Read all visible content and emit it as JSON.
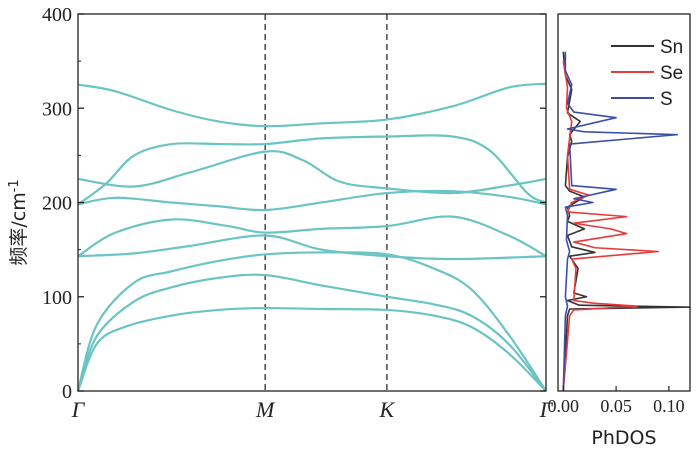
{
  "chart_data": [
    {
      "type": "line",
      "name": "phonon-dispersion",
      "ylabel": "频率/cm-1",
      "ylim": [
        0,
        400
      ],
      "yticks": [
        0,
        100,
        200,
        300,
        400
      ],
      "ytick_labels": [
        "0",
        "100",
        "200",
        "300",
        "400"
      ],
      "x_path": [
        0,
        1,
        1.65,
        2.5
      ],
      "k_points": [
        {
          "label": "Γ",
          "x": 0
        },
        {
          "label": "M",
          "x": 1
        },
        {
          "label": "K",
          "x": 1.65
        },
        {
          "label": "Γ",
          "x": 2.5
        }
      ],
      "dashed_at": [
        1,
        1.65
      ],
      "line_color": "#6bc4c4",
      "branches": [
        [
          [
            0,
            0
          ],
          [
            0.1,
            50
          ],
          [
            0.25,
            68
          ],
          [
            0.5,
            80
          ],
          [
            0.75,
            86
          ],
          [
            1,
            88
          ],
          [
            1.3,
            87
          ],
          [
            1.65,
            86
          ],
          [
            1.9,
            80
          ],
          [
            2.1,
            68
          ],
          [
            2.3,
            40
          ],
          [
            2.5,
            0
          ]
        ],
        [
          [
            0,
            0
          ],
          [
            0.1,
            58
          ],
          [
            0.3,
            95
          ],
          [
            0.5,
            110
          ],
          [
            0.75,
            120
          ],
          [
            1,
            123
          ],
          [
            1.3,
            112
          ],
          [
            1.65,
            100
          ],
          [
            1.9,
            92
          ],
          [
            2.1,
            80
          ],
          [
            2.3,
            50
          ],
          [
            2.5,
            0
          ]
        ],
        [
          [
            0,
            0
          ],
          [
            0.1,
            70
          ],
          [
            0.3,
            115
          ],
          [
            0.5,
            127
          ],
          [
            0.75,
            138
          ],
          [
            1,
            145
          ],
          [
            1.3,
            147
          ],
          [
            1.65,
            145
          ],
          [
            1.9,
            130
          ],
          [
            2.1,
            108
          ],
          [
            2.3,
            60
          ],
          [
            2.5,
            0
          ]
        ],
        [
          [
            0,
            143
          ],
          [
            0.3,
            146
          ],
          [
            0.6,
            154
          ],
          [
            1,
            165
          ],
          [
            1.3,
            150
          ],
          [
            1.65,
            143
          ],
          [
            2,
            140
          ],
          [
            2.5,
            143
          ]
        ],
        [
          [
            0,
            143
          ],
          [
            0.2,
            168
          ],
          [
            0.5,
            182
          ],
          [
            0.8,
            175
          ],
          [
            1,
            168
          ],
          [
            1.3,
            172
          ],
          [
            1.65,
            175
          ],
          [
            2,
            185
          ],
          [
            2.3,
            165
          ],
          [
            2.5,
            143
          ]
        ],
        [
          [
            0,
            198
          ],
          [
            0.2,
            205
          ],
          [
            0.5,
            200
          ],
          [
            0.75,
            196
          ],
          [
            1,
            192
          ],
          [
            1.3,
            200
          ],
          [
            1.65,
            210
          ],
          [
            2,
            212
          ],
          [
            2.3,
            206
          ],
          [
            2.5,
            198
          ]
        ],
        [
          [
            0,
            198
          ],
          [
            0.15,
            220
          ],
          [
            0.3,
            250
          ],
          [
            0.5,
            262
          ],
          [
            0.75,
            262
          ],
          [
            1,
            262
          ],
          [
            1.3,
            268
          ],
          [
            1.65,
            270
          ],
          [
            2,
            270
          ],
          [
            2.2,
            255
          ],
          [
            2.4,
            210
          ],
          [
            2.5,
            200
          ]
        ],
        [
          [
            0,
            225
          ],
          [
            0.3,
            217
          ],
          [
            0.6,
            232
          ],
          [
            1,
            254
          ],
          [
            1.2,
            245
          ],
          [
            1.4,
            222
          ],
          [
            1.65,
            215
          ],
          [
            2,
            210
          ],
          [
            2.3,
            218
          ],
          [
            2.5,
            225
          ]
        ],
        [
          [
            0,
            325
          ],
          [
            0.2,
            318
          ],
          [
            0.5,
            298
          ],
          [
            0.75,
            286
          ],
          [
            1,
            281
          ],
          [
            1.3,
            284
          ],
          [
            1.65,
            288
          ],
          [
            2,
            302
          ],
          [
            2.3,
            322
          ],
          [
            2.5,
            326
          ]
        ]
      ]
    },
    {
      "type": "line",
      "name": "phdos",
      "xlabel": "PhDOS",
      "xlim": [
        -0.005,
        0.12
      ],
      "xticks": [
        0,
        0.05,
        0.1
      ],
      "xtick_labels": [
        "0.00",
        "0.05",
        "0.10"
      ],
      "ylim": [
        0,
        400
      ],
      "legend_position": "top-right",
      "series": [
        {
          "name": "Sn",
          "color": "#333333",
          "points": [
            [
              0,
              0
            ],
            [
              0.002,
              40
            ],
            [
              0.004,
              80
            ],
            [
              0.006,
              87
            ],
            [
              0.12,
              89
            ],
            [
              0.015,
              91
            ],
            [
              0.004,
              96
            ],
            [
              0.022,
              100
            ],
            [
              0.01,
              104
            ],
            [
              0.014,
              130
            ],
            [
              0.006,
              143
            ],
            [
              0.03,
              147
            ],
            [
              0.008,
              153
            ],
            [
              0.004,
              165
            ],
            [
              0.02,
              172
            ],
            [
              0.004,
              180
            ],
            [
              0.006,
              186
            ],
            [
              0.004,
              195
            ],
            [
              0.02,
              206
            ],
            [
              0.006,
              212
            ],
            [
              0.002,
              218
            ],
            [
              0.004,
              248
            ],
            [
              0.008,
              265
            ],
            [
              0.006,
              272
            ],
            [
              0.016,
              286
            ],
            [
              0.004,
              295
            ],
            [
              0.008,
              320
            ],
            [
              0.002,
              335
            ],
            [
              0,
              360
            ]
          ]
        },
        {
          "name": "Se",
          "color": "#e83a3a",
          "points": [
            [
              0,
              0
            ],
            [
              0.003,
              40
            ],
            [
              0.006,
              80
            ],
            [
              0.01,
              86
            ],
            [
              0.07,
              90
            ],
            [
              0.03,
              93
            ],
            [
              0.01,
              96
            ],
            [
              0.012,
              130
            ],
            [
              0.008,
              140
            ],
            [
              0.09,
              148
            ],
            [
              0.03,
              152
            ],
            [
              0.01,
              158
            ],
            [
              0.06,
              167
            ],
            [
              0.045,
              172
            ],
            [
              0.01,
              178
            ],
            [
              0.06,
              185
            ],
            [
              0.004,
              190
            ],
            [
              0.008,
              200
            ],
            [
              0.024,
              208
            ],
            [
              0.006,
              214
            ],
            [
              0.004,
              250
            ],
            [
              0.006,
              268
            ],
            [
              0.008,
              286
            ],
            [
              0.003,
              300
            ],
            [
              0.004,
              322
            ],
            [
              0,
              350
            ]
          ]
        },
        {
          "name": "S",
          "color": "#3b4fa8",
          "points": [
            [
              0,
              0
            ],
            [
              0.002,
              80
            ],
            [
              0.004,
              90
            ],
            [
              0.002,
              100
            ],
            [
              0.004,
              140
            ],
            [
              0.006,
              148
            ],
            [
              0.003,
              160
            ],
            [
              0.004,
              186
            ],
            [
              0.002,
              195
            ],
            [
              0.028,
              200
            ],
            [
              0.01,
              204
            ],
            [
              0.05,
              214
            ],
            [
              0.008,
              218
            ],
            [
              0.006,
              262
            ],
            [
              0.108,
              272
            ],
            [
              0.02,
              275
            ],
            [
              0.004,
              278
            ],
            [
              0.05,
              290
            ],
            [
              0.01,
              296
            ],
            [
              0.004,
              305
            ],
            [
              0.008,
              325
            ],
            [
              0.002,
              340
            ],
            [
              0.002,
              360
            ]
          ]
        }
      ]
    }
  ]
}
